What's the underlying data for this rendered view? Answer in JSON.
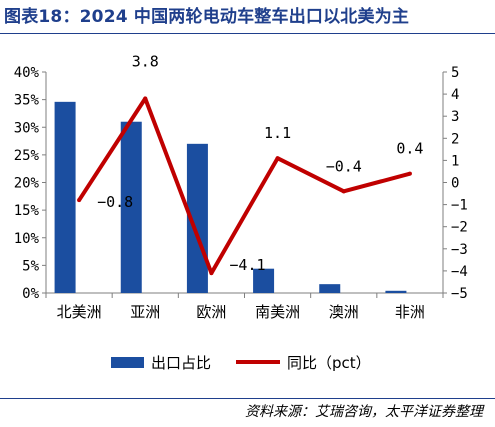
{
  "title": "图表18：2024 中国两轮电动车整车出口以北美为主",
  "source": "资料来源：艾瑞咨询，太平洋证券整理",
  "colors": {
    "bar": "#1b4ea0",
    "line": "#c00000",
    "title": "#1f3f8c"
  },
  "chart_data": {
    "type": "bar+line",
    "categories": [
      "北美洲",
      "亚洲",
      "欧洲",
      "南美洲",
      "澳洲",
      "非洲"
    ],
    "series": [
      {
        "name": "出口占比",
        "type": "bar",
        "axis": "left",
        "values": [
          34.6,
          31.0,
          27.0,
          4.4,
          1.6,
          0.4
        ]
      },
      {
        "name": "同比（pct）",
        "type": "line",
        "axis": "right",
        "values": [
          -0.8,
          3.8,
          -4.1,
          1.1,
          -0.4,
          0.4
        ],
        "labels": [
          "−0.8",
          "3.8",
          "−4.1",
          "1.1",
          "−0.4",
          "0.4"
        ]
      }
    ],
    "left_axis": {
      "ylim": [
        0,
        40
      ],
      "ticks": [
        0,
        5,
        10,
        15,
        20,
        25,
        30,
        35,
        40
      ],
      "tick_labels": [
        "0%",
        "5%",
        "10%",
        "15%",
        "20%",
        "25%",
        "30%",
        "35%",
        "40%"
      ]
    },
    "right_axis": {
      "ylim": [
        -5,
        5
      ],
      "ticks": [
        -5,
        -4,
        -3,
        -2,
        -1,
        0,
        1,
        2,
        3,
        4,
        5
      ],
      "tick_labels": [
        "−5",
        "−4",
        "−3",
        "−2",
        "−1",
        "0",
        "1",
        "2",
        "3",
        "4",
        "5"
      ]
    },
    "legend": {
      "position": "bottom",
      "items": [
        "出口占比",
        "同比（pct）"
      ]
    },
    "grid": false
  }
}
